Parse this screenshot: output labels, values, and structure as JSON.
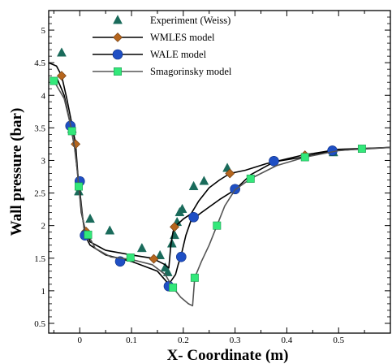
{
  "chart_data": {
    "type": "line",
    "xlabel": "X- Coordinate (m)",
    "ylabel": "Wall pressure (bar)",
    "xlim": [
      -0.06,
      0.6
    ],
    "ylim": [
      0.35,
      5.3
    ],
    "x_ticks": [
      0,
      0.1,
      0.2,
      0.3,
      0.4,
      0.5
    ],
    "y_ticks": [
      0.5,
      1,
      1.5,
      2,
      2.5,
      3,
      3.5,
      4,
      4.5,
      5
    ],
    "grid": false,
    "legend_position": "top-left",
    "series": [
      {
        "name": "Experiment (Weiss)",
        "kind": "markers",
        "marker": "triangle",
        "color": "#1a6b5b",
        "points": [
          [
            -0.035,
            4.65
          ],
          [
            -0.015,
            3.48
          ],
          [
            -0.002,
            2.52
          ],
          [
            0.02,
            2.1
          ],
          [
            0.058,
            1.92
          ],
          [
            0.12,
            1.65
          ],
          [
            0.155,
            1.54
          ],
          [
            0.165,
            1.35
          ],
          [
            0.17,
            1.28
          ],
          [
            0.178,
            1.72
          ],
          [
            0.183,
            1.85
          ],
          [
            0.188,
            2.05
          ],
          [
            0.193,
            2.2
          ],
          [
            0.198,
            2.25
          ],
          [
            0.22,
            2.6
          ],
          [
            0.24,
            2.68
          ],
          [
            0.285,
            2.88
          ],
          [
            0.49,
            3.12
          ]
        ]
      },
      {
        "name": "WMLES model",
        "kind": "line+markers",
        "marker": "diamond",
        "color": "#000000",
        "marker_color": "#b5651d",
        "points": [
          [
            -0.06,
            4.5
          ],
          [
            -0.045,
            4.45
          ],
          [
            -0.035,
            4.3
          ],
          [
            -0.025,
            3.95
          ],
          [
            -0.015,
            3.55
          ],
          [
            -0.008,
            3.25
          ],
          [
            -0.003,
            2.7
          ],
          [
            0.003,
            2.2
          ],
          [
            0.01,
            1.95
          ],
          [
            0.015,
            1.86
          ],
          [
            0.02,
            1.75
          ],
          [
            0.05,
            1.62
          ],
          [
            0.1,
            1.55
          ],
          [
            0.14,
            1.5
          ],
          [
            0.165,
            1.4
          ],
          [
            0.172,
            1.35
          ],
          [
            0.176,
            1.7
          ],
          [
            0.18,
            1.9
          ],
          [
            0.183,
            1.98
          ],
          [
            0.19,
            2.03
          ],
          [
            0.2,
            2.1
          ],
          [
            0.215,
            2.18
          ],
          [
            0.23,
            2.38
          ],
          [
            0.25,
            2.58
          ],
          [
            0.27,
            2.7
          ],
          [
            0.29,
            2.8
          ],
          [
            0.32,
            2.85
          ],
          [
            0.36,
            2.95
          ],
          [
            0.43,
            3.08
          ],
          [
            0.5,
            3.17
          ],
          [
            0.6,
            3.2
          ]
        ],
        "marker_points": [
          [
            -0.035,
            4.3
          ],
          [
            -0.008,
            3.25
          ],
          [
            0.012,
            1.91
          ],
          [
            0.143,
            1.49
          ],
          [
            0.183,
            1.98
          ],
          [
            0.29,
            2.8
          ],
          [
            0.435,
            3.08
          ]
        ]
      },
      {
        "name": "WALE model",
        "kind": "line+markers",
        "marker": "circle",
        "color": "#000000",
        "marker_color": "#1f4fc4",
        "points": [
          [
            -0.045,
            4.28
          ],
          [
            -0.03,
            4.0
          ],
          [
            -0.018,
            3.55
          ],
          [
            -0.01,
            3.2
          ],
          [
            -0.004,
            2.8
          ],
          [
            0.002,
            2.4
          ],
          [
            0.006,
            2.1
          ],
          [
            0.01,
            1.85
          ],
          [
            0.02,
            1.7
          ],
          [
            0.05,
            1.55
          ],
          [
            0.1,
            1.45
          ],
          [
            0.15,
            1.3
          ],
          [
            0.172,
            1.1
          ],
          [
            0.185,
            1.25
          ],
          [
            0.19,
            1.4
          ],
          [
            0.196,
            1.55
          ],
          [
            0.205,
            1.85
          ],
          [
            0.215,
            2.08
          ],
          [
            0.235,
            2.2
          ],
          [
            0.27,
            2.4
          ],
          [
            0.3,
            2.55
          ],
          [
            0.33,
            2.78
          ],
          [
            0.376,
            2.98
          ],
          [
            0.43,
            3.05
          ],
          [
            0.49,
            3.15
          ],
          [
            0.6,
            3.2
          ]
        ],
        "marker_points": [
          [
            -0.018,
            3.53
          ],
          [
            0.0,
            2.68
          ],
          [
            0.01,
            1.85
          ],
          [
            0.078,
            1.45
          ],
          [
            0.172,
            1.07
          ],
          [
            0.196,
            1.52
          ],
          [
            0.22,
            2.13
          ],
          [
            0.3,
            2.56
          ],
          [
            0.375,
            2.99
          ],
          [
            0.488,
            3.15
          ]
        ]
      },
      {
        "name": "Smagorinsky model",
        "kind": "line+markers",
        "marker": "square",
        "color": "#555555",
        "marker_color": "#33e87a",
        "points": [
          [
            -0.05,
            4.22
          ],
          [
            -0.03,
            3.95
          ],
          [
            -0.015,
            3.45
          ],
          [
            -0.008,
            3.1
          ],
          [
            -0.002,
            2.6
          ],
          [
            0.004,
            2.2
          ],
          [
            0.01,
            1.9
          ],
          [
            0.016,
            1.86
          ],
          [
            0.03,
            1.65
          ],
          [
            0.06,
            1.52
          ],
          [
            0.1,
            1.48
          ],
          [
            0.14,
            1.4
          ],
          [
            0.165,
            1.25
          ],
          [
            0.18,
            1.05
          ],
          [
            0.195,
            0.9
          ],
          [
            0.21,
            0.8
          ],
          [
            0.218,
            0.77
          ],
          [
            0.222,
            1.2
          ],
          [
            0.235,
            1.45
          ],
          [
            0.25,
            1.7
          ],
          [
            0.265,
            2.0
          ],
          [
            0.28,
            2.3
          ],
          [
            0.3,
            2.55
          ],
          [
            0.33,
            2.72
          ],
          [
            0.38,
            2.92
          ],
          [
            0.435,
            3.05
          ],
          [
            0.5,
            3.15
          ],
          [
            0.545,
            3.18
          ],
          [
            0.6,
            3.2
          ]
        ],
        "marker_points": [
          [
            -0.05,
            4.22
          ],
          [
            -0.015,
            3.45
          ],
          [
            -0.002,
            2.6
          ],
          [
            0.016,
            1.86
          ],
          [
            0.098,
            1.51
          ],
          [
            0.18,
            1.05
          ],
          [
            0.222,
            1.2
          ],
          [
            0.265,
            2.0
          ],
          [
            0.33,
            2.72
          ],
          [
            0.435,
            3.05
          ],
          [
            0.545,
            3.18
          ]
        ]
      }
    ]
  }
}
